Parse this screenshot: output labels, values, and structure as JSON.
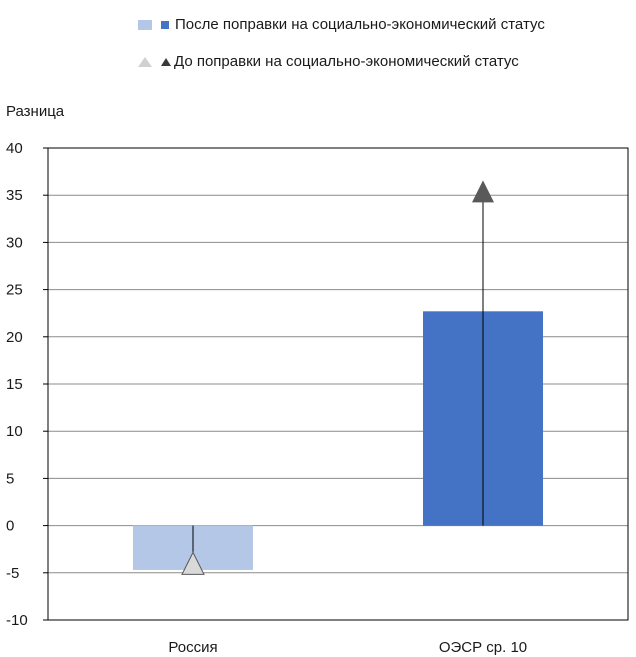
{
  "chart_data": {
    "type": "bar",
    "categories": [
      "Россия",
      "ОЭСР ср. 10"
    ],
    "series": [
      {
        "name": "После поправки на социально-экономический статус",
        "values": [
          -4.7,
          22.7
        ],
        "colors": [
          "#b4c7e7",
          "#4472c4"
        ]
      },
      {
        "name": "До поправки на социально-экономический статус",
        "values": [
          -4.0,
          35.4
        ],
        "marker": "triangle",
        "colors": [
          "#d9d9d9",
          "#595959"
        ]
      }
    ],
    "title": "",
    "xlabel": "",
    "ylabel": "Разница",
    "ylim": [
      -10,
      40
    ],
    "yticks": [
      40,
      35,
      30,
      25,
      20,
      15,
      10,
      5,
      0,
      -5,
      -10
    ],
    "grid": true,
    "legend_position": "top"
  },
  "legend": {
    "after_label": "После поправки на социально-экономический статус",
    "before_label": "До поправки на социально-экономический статус"
  },
  "colors": {
    "after_light": "#b4c7e7",
    "after_dark": "#4472c4",
    "before_light": "#d9d9d9",
    "before_dark": "#595959",
    "grid": "#8c8c8c",
    "axis": "#000000"
  }
}
